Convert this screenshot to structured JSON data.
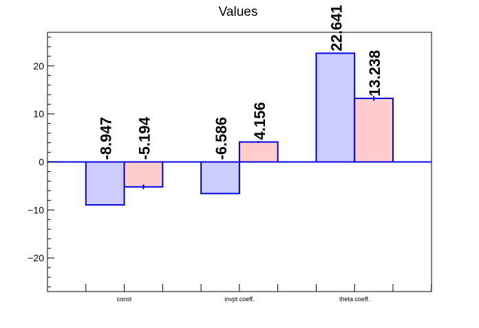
{
  "chart_data": {
    "type": "bar",
    "title": "Values",
    "xlabel": "",
    "ylabel": "",
    "categories": [
      "const",
      "invpt coeff.",
      "theta coeff."
    ],
    "series": [
      {
        "values": [
          -8.947,
          -6.586,
          22.641
        ],
        "labels": [
          "-8.947",
          "-6.586",
          "22.641"
        ],
        "fill": "#ccccff",
        "stroke": "#0000dd"
      },
      {
        "values": [
          -5.194,
          4.156,
          13.238
        ],
        "errors": [
          0.5,
          0.2,
          0.5
        ],
        "labels": [
          "-5.194",
          "4.156",
          "13.238"
        ],
        "fill": "#ffcccc",
        "stroke": "#0000dd"
      }
    ],
    "ylim": [
      -27,
      27
    ],
    "yticks": [
      -20,
      -10,
      0,
      10,
      20
    ],
    "ytick_labels": [
      "−20",
      "−10",
      "0",
      "10",
      "20"
    ],
    "zero_line_color": "#0000dd",
    "grid": false,
    "legend": "none"
  }
}
